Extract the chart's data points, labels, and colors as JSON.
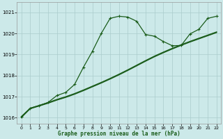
{
  "xlabel": "Graphe pression niveau de la mer (hPa)",
  "bg_color": "#cce9e9",
  "grid_color": "#aacccc",
  "line_color": "#1a5c1a",
  "xlim": [
    -0.5,
    22.5
  ],
  "ylim": [
    1015.7,
    1021.5
  ],
  "xticks": [
    0,
    1,
    2,
    3,
    4,
    5,
    6,
    7,
    8,
    9,
    10,
    11,
    12,
    13,
    14,
    15,
    16,
    17,
    18,
    19,
    20,
    21,
    22
  ],
  "yticks": [
    1016,
    1017,
    1018,
    1019,
    1020,
    1021
  ],
  "series": [
    {
      "x": [
        0,
        1,
        2,
        3,
        4,
        5,
        6,
        7,
        8,
        9,
        10,
        11,
        12,
        13,
        14,
        15,
        16,
        17,
        18,
        19,
        20,
        21,
        22
      ],
      "y": [
        1016.05,
        1016.45,
        1016.58,
        1016.72,
        1016.87,
        1017.0,
        1017.15,
        1017.32,
        1017.5,
        1017.68,
        1017.87,
        1018.07,
        1018.28,
        1018.5,
        1018.72,
        1018.93,
        1019.12,
        1019.3,
        1019.47,
        1019.63,
        1019.78,
        1019.93,
        1020.08
      ],
      "marker": null,
      "linestyle": "-",
      "linewidth": 0.8
    },
    {
      "x": [
        0,
        1,
        2,
        3,
        4,
        5,
        6,
        7,
        8,
        9,
        10,
        11,
        12,
        13,
        14,
        15,
        16,
        17,
        18,
        19,
        20,
        21,
        22
      ],
      "y": [
        1016.0,
        1016.42,
        1016.55,
        1016.68,
        1016.83,
        1016.96,
        1017.11,
        1017.28,
        1017.46,
        1017.64,
        1017.83,
        1018.03,
        1018.24,
        1018.46,
        1018.68,
        1018.89,
        1019.08,
        1019.26,
        1019.43,
        1019.59,
        1019.74,
        1019.89,
        1020.04
      ],
      "marker": null,
      "linestyle": "-",
      "linewidth": 0.8
    },
    {
      "x": [
        0,
        1,
        2,
        3,
        4,
        5,
        6,
        7,
        8,
        9,
        10,
        11,
        12,
        13,
        14,
        15,
        16,
        17,
        18,
        19,
        20,
        21,
        22
      ],
      "y": [
        1016.02,
        1016.44,
        1016.56,
        1016.7,
        1016.85,
        1016.98,
        1017.13,
        1017.3,
        1017.48,
        1017.66,
        1017.85,
        1018.05,
        1018.26,
        1018.48,
        1018.7,
        1018.91,
        1019.1,
        1019.28,
        1019.45,
        1019.61,
        1019.76,
        1019.91,
        1020.06
      ],
      "marker": null,
      "linestyle": "-",
      "linewidth": 0.8
    },
    {
      "x": [
        0,
        1,
        2,
        3,
        4,
        5,
        6,
        7,
        8,
        9,
        10,
        11,
        12,
        13,
        14,
        15,
        16,
        17,
        18,
        19,
        20,
        21,
        22
      ],
      "y": [
        1016.05,
        1016.45,
        1016.58,
        1016.72,
        1017.05,
        1017.2,
        1017.58,
        1018.4,
        1019.15,
        1020.0,
        1020.72,
        1020.82,
        1020.78,
        1020.58,
        1019.95,
        1019.87,
        1019.62,
        1019.42,
        1019.43,
        1019.98,
        1020.2,
        1020.72,
        1020.82
      ],
      "marker": "+",
      "linestyle": "-",
      "linewidth": 0.9
    }
  ]
}
